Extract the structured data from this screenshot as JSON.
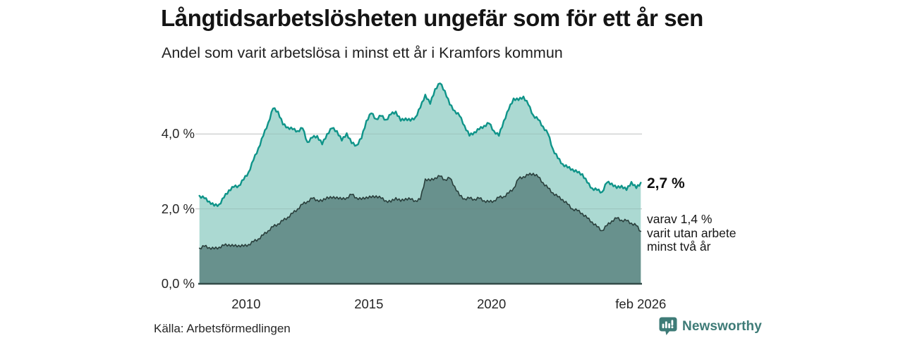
{
  "header": {
    "title": "Långtidsarbetslösheten ungefär som för ett år sen",
    "subtitle": "Andel som varit arbetslösa i minst ett år i Kramfors kommun"
  },
  "annotations": {
    "latest_total": "2,7 %",
    "breakdown_line1": "varav 1,4 %",
    "breakdown_line2": "varit utan arbete",
    "breakdown_line3": "minst två år"
  },
  "footer": {
    "source": "Källa: Arbetsförmedlingen",
    "brand": "Newsworthy",
    "brand_icon": "bar-chart-speech-bubble-icon"
  },
  "colors": {
    "series_one_year_fill": "#abd9d2",
    "series_one_year_stroke": "#0f9489",
    "series_two_year_fill": "#68918d",
    "series_two_year_stroke": "#293f3c",
    "gridline": "#d6d6d6",
    "axis_line": "#334b48",
    "brand_teal": "#3e7b77",
    "text_dark": "#141414"
  },
  "chart_data": {
    "type": "area",
    "title": "Långtidsarbetslösheten ungefär som för ett år sen",
    "subtitle": "Andel som varit arbetslösa i minst ett år i Kramfors kommun",
    "x_unit": "decimal year (monthly share of registered unemployed, percent)",
    "xlim": [
      2008.05,
      2026.13
    ],
    "ylim": [
      0,
      5.5
    ],
    "grid": "horizontal",
    "legend_position": "right-annotations",
    "x": [
      2008.1,
      2008.3,
      2008.5,
      2008.7,
      2008.9,
      2009.1,
      2009.3,
      2009.5,
      2009.7,
      2009.9,
      2010.1,
      2010.3,
      2010.5,
      2010.7,
      2010.9,
      2011.1,
      2011.3,
      2011.5,
      2011.7,
      2011.9,
      2012.1,
      2012.3,
      2012.5,
      2012.7,
      2012.9,
      2013.1,
      2013.3,
      2013.5,
      2013.7,
      2013.9,
      2014.1,
      2014.3,
      2014.5,
      2014.7,
      2014.9,
      2015.1,
      2015.3,
      2015.5,
      2015.7,
      2015.9,
      2016.1,
      2016.3,
      2016.5,
      2016.7,
      2016.9,
      2017.1,
      2017.3,
      2017.5,
      2017.7,
      2017.9,
      2018.1,
      2018.3,
      2018.5,
      2018.7,
      2018.9,
      2019.1,
      2019.3,
      2019.5,
      2019.7,
      2019.9,
      2020.1,
      2020.3,
      2020.5,
      2020.7,
      2020.9,
      2021.1,
      2021.3,
      2021.5,
      2021.7,
      2021.9,
      2022.1,
      2022.3,
      2022.5,
      2022.7,
      2022.9,
      2023.1,
      2023.3,
      2023.5,
      2023.7,
      2023.9,
      2024.1,
      2024.3,
      2024.5,
      2024.7,
      2024.9,
      2025.1,
      2025.3,
      2025.5,
      2025.7,
      2025.9,
      2026.08
    ],
    "series": [
      {
        "name": "Arbetslösa minst ett år",
        "latest_label": "2,7 %",
        "latest_value": 2.7,
        "fill": "#abd9d2",
        "stroke": "#0f9489",
        "values": [
          2.35,
          2.28,
          2.2,
          2.08,
          2.12,
          2.3,
          2.5,
          2.58,
          2.62,
          2.78,
          2.98,
          3.3,
          3.62,
          3.95,
          4.3,
          4.68,
          4.6,
          4.25,
          4.18,
          4.12,
          4.08,
          4.15,
          3.78,
          3.9,
          3.95,
          3.72,
          4.0,
          4.15,
          4.08,
          3.82,
          4.02,
          3.75,
          3.7,
          3.88,
          4.35,
          4.55,
          4.4,
          4.48,
          4.38,
          4.52,
          4.6,
          4.35,
          4.42,
          4.35,
          4.45,
          4.7,
          5.05,
          4.8,
          5.2,
          5.35,
          5.15,
          4.78,
          4.62,
          4.48,
          4.22,
          3.95,
          4.05,
          4.12,
          4.22,
          4.28,
          4.08,
          3.95,
          4.35,
          4.65,
          4.95,
          4.9,
          5.0,
          4.78,
          4.5,
          4.38,
          4.2,
          4.0,
          3.6,
          3.35,
          3.2,
          3.1,
          3.06,
          2.97,
          2.93,
          2.7,
          2.55,
          2.5,
          2.45,
          2.7,
          2.68,
          2.55,
          2.62,
          2.5,
          2.72,
          2.55,
          2.7
        ]
      },
      {
        "name": "Arbetslösa minst två år",
        "latest_label": "1,4 %",
        "latest_value": 1.4,
        "fill": "#68918d",
        "stroke": "#293f3c",
        "values": [
          0.95,
          1.0,
          0.97,
          0.93,
          0.98,
          1.02,
          1.05,
          1.0,
          1.03,
          1.0,
          1.05,
          1.12,
          1.2,
          1.3,
          1.42,
          1.52,
          1.6,
          1.68,
          1.78,
          1.88,
          2.0,
          2.12,
          2.2,
          2.28,
          2.24,
          2.2,
          2.32,
          2.28,
          2.32,
          2.25,
          2.3,
          2.38,
          2.3,
          2.25,
          2.32,
          2.3,
          2.35,
          2.28,
          2.22,
          2.18,
          2.3,
          2.2,
          2.28,
          2.25,
          2.22,
          2.25,
          2.8,
          2.75,
          2.83,
          2.87,
          2.78,
          2.82,
          2.6,
          2.35,
          2.27,
          2.28,
          2.26,
          2.28,
          2.22,
          2.18,
          2.22,
          2.3,
          2.33,
          2.42,
          2.55,
          2.8,
          2.86,
          2.9,
          2.95,
          2.85,
          2.7,
          2.55,
          2.43,
          2.32,
          2.25,
          2.12,
          2.0,
          1.95,
          1.88,
          1.75,
          1.65,
          1.52,
          1.42,
          1.55,
          1.68,
          1.75,
          1.7,
          1.68,
          1.62,
          1.55,
          1.4
        ]
      }
    ],
    "y_ticks": [
      {
        "value": 0,
        "label": "0,0 %"
      },
      {
        "value": 2,
        "label": "2,0 %"
      },
      {
        "value": 4,
        "label": "4,0 %"
      }
    ],
    "x_ticks": [
      {
        "t": 2010,
        "label": "2010"
      },
      {
        "t": 2015,
        "label": "2015"
      },
      {
        "t": 2020,
        "label": "2020"
      },
      {
        "t": 2026.08,
        "label": "feb 2026"
      }
    ]
  }
}
